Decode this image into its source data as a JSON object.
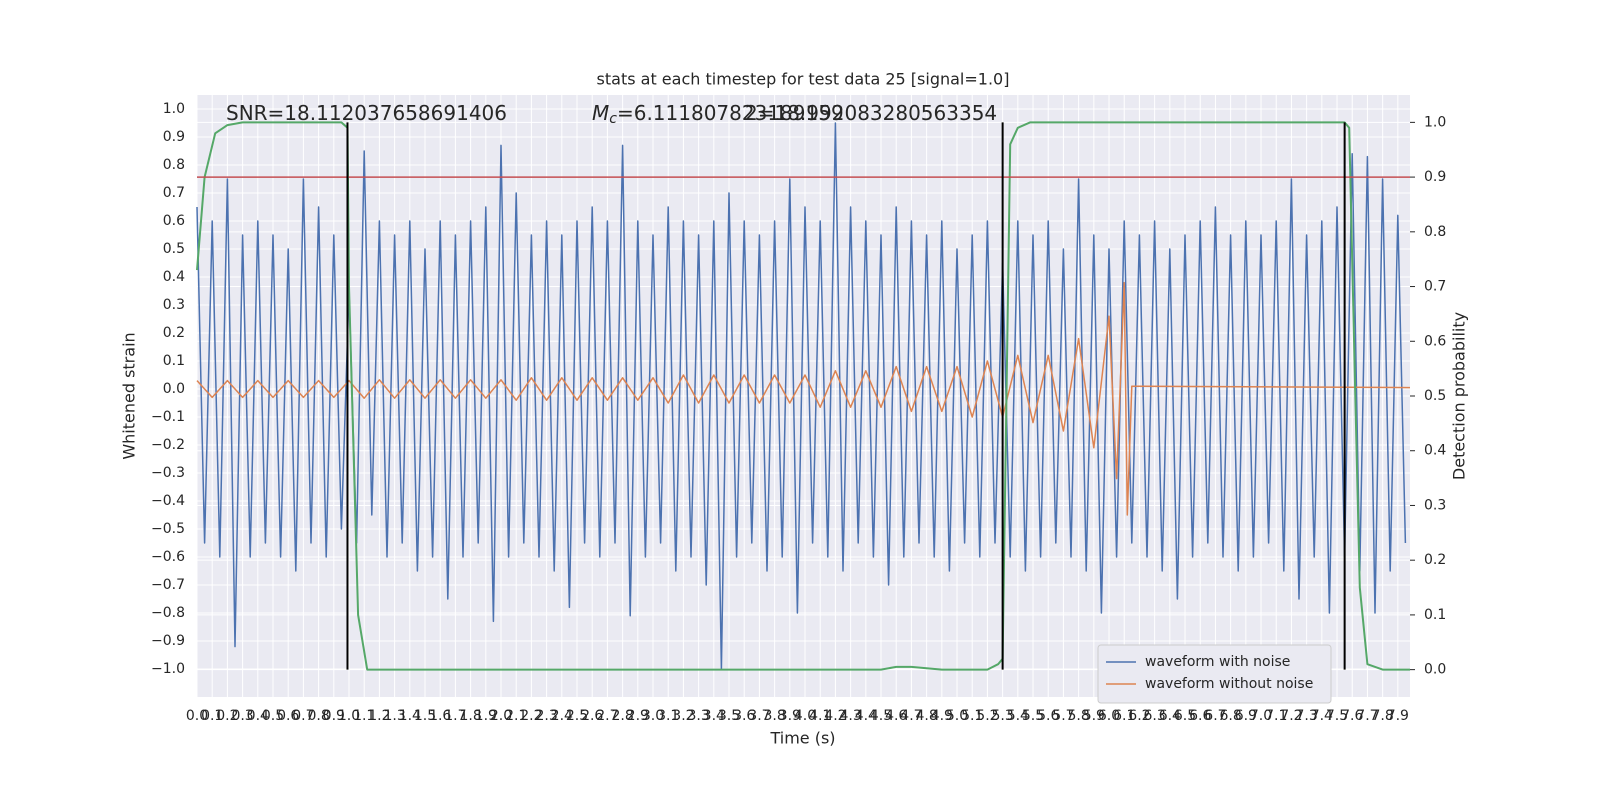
{
  "chart_data": {
    "type": "line",
    "title": "stats at each timestep for test data 25 [signal=1.0]",
    "xlabel": "Time (s)",
    "ylabel": "Whitened strain",
    "y2label": "Detection probability",
    "annotations": [
      {
        "text": "SNR=18.112037658691406"
      },
      {
        "symbol": "M",
        "subscript": "c",
        "text": "=6.111807823189159"
      },
      {
        "text": "2=18.992083280563354"
      }
    ],
    "xlim": [
      0,
      7.98
    ],
    "ylim": [
      -1.1,
      1.05
    ],
    "y2lim": [
      -0.05,
      1.05
    ],
    "grid": true,
    "background": "#eaeaf2",
    "legend": "lower right",
    "xticks": [
      {
        "value": 0,
        "label": "0.0"
      },
      0.1,
      0.2,
      0.3,
      0.4,
      0.5,
      0.6,
      0.7,
      0.8,
      0.9,
      {
        "value": 1,
        "label": "1.0"
      },
      1.1,
      1.2,
      1.3,
      1.4,
      1.5,
      1.6,
      1.7,
      1.8,
      1.9,
      {
        "value": 2,
        "label": "2.0"
      },
      2.1,
      2.2,
      2.3,
      2.4,
      2.5,
      2.6,
      2.7,
      2.8,
      2.9,
      {
        "value": 3,
        "label": "3.0"
      },
      3.1,
      3.2,
      3.3,
      3.4,
      3.5,
      3.6,
      3.7,
      3.8,
      3.9,
      {
        "value": 4,
        "label": "4.0"
      },
      4.1,
      4.2,
      4.3,
      4.4,
      4.5,
      4.6,
      4.7,
      4.8,
      4.9,
      {
        "value": 5,
        "label": "5.0"
      },
      5.1,
      5.2,
      5.3,
      5.4,
      5.5,
      5.6,
      5.7,
      5.8,
      5.9,
      {
        "value": 6,
        "label": "6.0"
      },
      6.1,
      6.2,
      6.3,
      6.4,
      6.5,
      6.6,
      6.7,
      6.8,
      6.9,
      {
        "value": 7,
        "label": "7.0"
      },
      7.1,
      7.2,
      7.3,
      7.4,
      7.5,
      7.6,
      7.7,
      7.8,
      7.9
    ],
    "yticks": [
      {
        "value": -1,
        "label": "−1.0"
      },
      {
        "value": -0.9,
        "label": "−0.9"
      },
      {
        "value": -0.8,
        "label": "−0.8"
      },
      {
        "value": -0.7,
        "label": "−0.7"
      },
      {
        "value": -0.6,
        "label": "−0.6"
      },
      {
        "value": -0.5,
        "label": "−0.5"
      },
      {
        "value": -0.4,
        "label": "−0.4"
      },
      {
        "value": -0.3,
        "label": "−0.3"
      },
      {
        "value": -0.2,
        "label": "−0.2"
      },
      {
        "value": -0.1,
        "label": "−0.1"
      },
      {
        "value": 0,
        "label": "0.0"
      },
      0.1,
      0.2,
      0.3,
      0.4,
      0.5,
      0.6,
      0.7,
      0.8,
      0.9,
      {
        "value": 1,
        "label": "1.0"
      }
    ],
    "y2ticks": [
      {
        "value": 0,
        "label": "0.0"
      },
      0.1,
      0.2,
      0.3,
      0.4,
      0.5,
      0.6,
      0.7,
      0.8,
      0.9,
      {
        "value": 1,
        "label": "1.0"
      }
    ],
    "series": [
      {
        "name": "waveform with noise",
        "color": "#4c72b0",
        "x": [
          0,
          0.05,
          0.1,
          0.15,
          0.2,
          0.25,
          0.3,
          0.35,
          0.4,
          0.45,
          0.5,
          0.55,
          0.6,
          0.65,
          0.7,
          0.75,
          0.8,
          0.85,
          0.9,
          0.95,
          1,
          1.05,
          1.1,
          1.15,
          1.2,
          1.25,
          1.3,
          1.35,
          1.4,
          1.45,
          1.5,
          1.55,
          1.6,
          1.65,
          1.7,
          1.75,
          1.8,
          1.85,
          1.9,
          1.95,
          2,
          2.05,
          2.1,
          2.15,
          2.2,
          2.25,
          2.3,
          2.35,
          2.4,
          2.45,
          2.5,
          2.55,
          2.6,
          2.65,
          2.7,
          2.75,
          2.8,
          2.85,
          2.9,
          2.95,
          3,
          3.05,
          3.1,
          3.15,
          3.2,
          3.25,
          3.3,
          3.35,
          3.4,
          3.45,
          3.5,
          3.55,
          3.6,
          3.65,
          3.7,
          3.75,
          3.8,
          3.85,
          3.9,
          3.95,
          4,
          4.05,
          4.1,
          4.15,
          4.2,
          4.25,
          4.3,
          4.35,
          4.4,
          4.45,
          4.5,
          4.55,
          4.6,
          4.65,
          4.7,
          4.75,
          4.8,
          4.85,
          4.9,
          4.95,
          5,
          5.05,
          5.1,
          5.15,
          5.2,
          5.25,
          5.3,
          5.35,
          5.4,
          5.45,
          5.5,
          5.55,
          5.6,
          5.65,
          5.7,
          5.75,
          5.8,
          5.85,
          5.9,
          5.95,
          6,
          6.05,
          6.1,
          6.15,
          6.2,
          6.25,
          6.3,
          6.35,
          6.4,
          6.45,
          6.5,
          6.55,
          6.6,
          6.65,
          6.7,
          6.75,
          6.8,
          6.85,
          6.9,
          6.95,
          7,
          7.05,
          7.1,
          7.15,
          7.2,
          7.25,
          7.3,
          7.35,
          7.4,
          7.45,
          7.5,
          7.55,
          7.6,
          7.65,
          7.7,
          7.75,
          7.8,
          7.85,
          7.9,
          7.95
        ],
        "values": [
          0.65,
          -0.55,
          0.6,
          -0.6,
          0.75,
          -0.92,
          0.55,
          -0.6,
          0.6,
          -0.55,
          0.55,
          -0.6,
          0.5,
          -0.65,
          0.75,
          -0.55,
          0.65,
          -0.6,
          0.55,
          -0.5,
          0.35,
          -0.55,
          0.85,
          -0.45,
          0.6,
          -0.6,
          0.55,
          -0.55,
          0.6,
          -0.65,
          0.5,
          -0.6,
          0.6,
          -0.75,
          0.55,
          -0.6,
          0.6,
          -0.55,
          0.65,
          -0.83,
          0.87,
          -0.6,
          0.7,
          -0.55,
          0.55,
          -0.6,
          0.6,
          -0.65,
          0.55,
          -0.78,
          0.6,
          -0.55,
          0.65,
          -0.6,
          0.6,
          -0.55,
          0.87,
          -0.81,
          0.6,
          -0.6,
          0.55,
          -0.55,
          0.65,
          -0.65,
          0.6,
          -0.6,
          0.55,
          -0.7,
          0.6,
          -1.0,
          0.7,
          -0.6,
          0.6,
          -0.55,
          0.55,
          -0.65,
          0.6,
          -0.6,
          0.75,
          -0.8,
          0.65,
          -0.55,
          0.6,
          -0.6,
          0.95,
          -0.65,
          0.65,
          -0.55,
          0.6,
          -0.6,
          0.55,
          -0.7,
          0.65,
          -0.6,
          0.6,
          -0.55,
          0.55,
          -0.6,
          0.6,
          -0.65,
          0.5,
          -0.55,
          0.55,
          -0.6,
          0.6,
          -0.55,
          0.45,
          -0.6,
          0.6,
          -0.65,
          0.55,
          -0.6,
          0.6,
          -0.55,
          0.5,
          -0.6,
          0.75,
          -0.65,
          0.55,
          -0.8,
          0.5,
          -0.6,
          0.6,
          -0.55,
          0.55,
          -0.6,
          0.6,
          -0.65,
          0.5,
          -0.75,
          0.55,
          -0.6,
          0.6,
          -0.55,
          0.65,
          -0.6,
          0.55,
          -0.65,
          0.6,
          -0.6,
          0.55,
          -0.55,
          0.6,
          -0.65,
          0.75,
          -0.75,
          0.55,
          -0.6,
          0.6,
          -0.8,
          0.65,
          -0.6,
          0.84,
          -0.65,
          0.83,
          -0.8,
          0.75,
          -0.65,
          0.62,
          -0.55
        ]
      },
      {
        "name": "waveform without noise",
        "color": "#dd8452",
        "x": [
          0,
          0.1,
          0.2,
          0.3,
          0.4,
          0.5,
          0.6,
          0.7,
          0.8,
          0.9,
          1,
          1.1,
          1.2,
          1.3,
          1.4,
          1.5,
          1.6,
          1.7,
          1.8,
          1.9,
          2,
          2.1,
          2.2,
          2.3,
          2.4,
          2.5,
          2.6,
          2.7,
          2.8,
          2.9,
          3,
          3.1,
          3.2,
          3.3,
          3.4,
          3.5,
          3.6,
          3.7,
          3.8,
          3.9,
          4,
          4.1,
          4.2,
          4.3,
          4.4,
          4.5,
          4.6,
          4.7,
          4.8,
          4.9,
          5,
          5.1,
          5.2,
          5.3,
          5.4,
          5.5,
          5.6,
          5.7,
          5.8,
          5.9,
          6,
          6.05,
          6.1,
          6.12,
          6.15,
          7.98
        ],
        "values": [
          0.03,
          -0.03,
          0.03,
          -0.03,
          0.03,
          -0.03,
          0.03,
          -0.03,
          0.03,
          -0.03,
          0.03,
          -0.033,
          0.033,
          -0.033,
          0.033,
          -0.033,
          0.033,
          -0.033,
          0.033,
          -0.033,
          0.033,
          -0.04,
          0.04,
          -0.04,
          0.04,
          -0.04,
          0.04,
          -0.04,
          0.04,
          -0.04,
          0.04,
          -0.05,
          0.05,
          -0.05,
          0.05,
          -0.05,
          0.05,
          -0.05,
          0.05,
          -0.05,
          0.05,
          -0.065,
          0.065,
          -0.065,
          0.065,
          -0.065,
          0.08,
          -0.08,
          0.08,
          -0.08,
          0.08,
          -0.1,
          0.1,
          -0.1,
          0.12,
          -0.12,
          0.12,
          -0.15,
          0.18,
          -0.21,
          0.26,
          -0.32,
          0.38,
          -0.45,
          0.01,
          0.005
        ]
      },
      {
        "color": "#55a868",
        "axis": "y2",
        "x": [
          0,
          0.05,
          0.12,
          0.2,
          0.3,
          0.95,
          0.99,
          1.0,
          1.06,
          1.12,
          1.2,
          4.5,
          4.6,
          4.7,
          4.9,
          5.2,
          5.27,
          5.3,
          5.35,
          5.4,
          5.48,
          7.55,
          7.58,
          7.62,
          7.65,
          7.7,
          7.8,
          7.98
        ],
        "values": [
          0.73,
          0.9,
          0.98,
          0.995,
          1.0,
          1.0,
          0.99,
          0.7,
          0.1,
          0.0,
          0.0,
          0.0,
          0.005,
          0.005,
          0.0,
          0.0,
          0.01,
          0.02,
          0.96,
          0.99,
          1.0,
          1.0,
          0.99,
          0.5,
          0.15,
          0.01,
          0.0,
          0.0
        ]
      }
    ],
    "threshold": {
      "value": 0.9,
      "axis": "y2",
      "color": "#c44e52"
    },
    "vlines": {
      "x": [
        0.99,
        5.3,
        7.55
      ],
      "ymin": 0,
      "ymax": 1,
      "axis": "y2",
      "color": "#000000"
    }
  }
}
